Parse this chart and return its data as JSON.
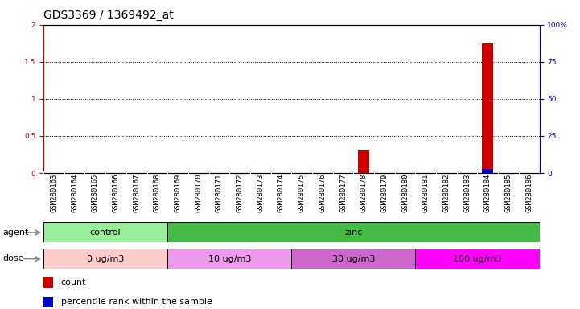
{
  "title": "GDS3369 / 1369492_at",
  "samples": [
    "GSM280163",
    "GSM280164",
    "GSM280165",
    "GSM280166",
    "GSM280167",
    "GSM280168",
    "GSM280169",
    "GSM280170",
    "GSM280171",
    "GSM280172",
    "GSM280173",
    "GSM280174",
    "GSM280175",
    "GSM280176",
    "GSM280177",
    "GSM280178",
    "GSM280179",
    "GSM280180",
    "GSM280181",
    "GSM280182",
    "GSM280183",
    "GSM280184",
    "GSM280185",
    "GSM280186"
  ],
  "red_bar_values": [
    0,
    0,
    0,
    0,
    0,
    0,
    0,
    0,
    0,
    0,
    0,
    0,
    0,
    0,
    0,
    0.3,
    0,
    0,
    0,
    0,
    0,
    1.75,
    0,
    0
  ],
  "blue_bar_values": [
    0,
    0,
    0,
    0,
    0,
    0,
    0,
    0,
    0,
    0,
    0,
    0,
    0,
    0,
    0,
    0,
    0,
    0,
    0,
    0,
    0,
    3,
    0,
    0
  ],
  "ylim_left": [
    0,
    2
  ],
  "ylim_right": [
    0,
    100
  ],
  "yticks_left": [
    0,
    0.5,
    1.0,
    1.5,
    2.0
  ],
  "yticks_right": [
    0,
    25,
    50,
    75,
    100
  ],
  "agent_groups": [
    {
      "label": "control",
      "start": 0,
      "end": 6,
      "color": "#99EE99"
    },
    {
      "label": "zinc",
      "start": 6,
      "end": 24,
      "color": "#44BB44"
    }
  ],
  "dose_groups": [
    {
      "label": "0 ug/m3",
      "start": 0,
      "end": 6,
      "color": "#FFCCCC"
    },
    {
      "label": "10 ug/m3",
      "start": 6,
      "end": 12,
      "color": "#EE99EE"
    },
    {
      "label": "30 ug/m3",
      "start": 12,
      "end": 18,
      "color": "#CC66CC"
    },
    {
      "label": "100 ug/m3",
      "start": 18,
      "end": 24,
      "color": "#FF00FF"
    }
  ],
  "red_color": "#CC0000",
  "blue_color": "#0000CC",
  "bg_color": "#FFFFFF",
  "sample_bg_color": "#DDDDDD",
  "left_tick_color": "#CC0000",
  "right_tick_color": "#0000CC",
  "title_fontsize": 10,
  "tick_label_fontsize": 6.5,
  "legend_fontsize": 8,
  "row_label_fontsize": 8,
  "bar_width": 0.55
}
